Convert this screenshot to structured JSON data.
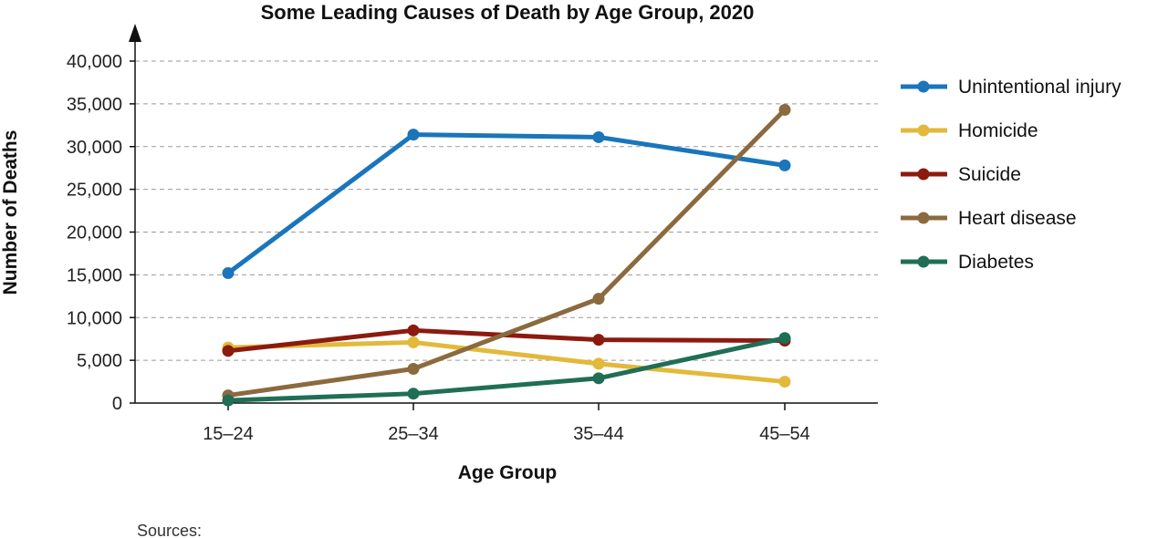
{
  "chart_data": {
    "type": "line",
    "title": "Some Leading Causes of Death by Age Group, 2020",
    "xlabel": "Age Group",
    "ylabel": "Number of Deaths",
    "categories": [
      "15–24",
      "25–34",
      "35–44",
      "45–54"
    ],
    "ylim": [
      0,
      40000
    ],
    "yticks": [
      0,
      5000,
      10000,
      15000,
      20000,
      25000,
      30000,
      35000,
      40000
    ],
    "ytick_labels": [
      "0",
      "5,000",
      "10,000",
      "15,000",
      "20,000",
      "25,000",
      "30,000",
      "35,000",
      "40,000"
    ],
    "grid": true,
    "legend_position": "right",
    "series": [
      {
        "name": "Unintentional injury",
        "color": "#1a75bb",
        "values": [
          15200,
          31400,
          31100,
          27800
        ]
      },
      {
        "name": "Homicide",
        "color": "#e2b93b",
        "values": [
          6500,
          7100,
          4600,
          2500
        ]
      },
      {
        "name": "Suicide",
        "color": "#8c1a0f",
        "values": [
          6100,
          8500,
          7400,
          7300
        ]
      },
      {
        "name": "Heart disease",
        "color": "#8b6a3e",
        "values": [
          900,
          4000,
          12200,
          34300
        ]
      },
      {
        "name": "Diabetes",
        "color": "#1f6e56",
        "values": [
          300,
          1100,
          2900,
          7600
        ]
      }
    ]
  },
  "footer": {
    "sources_label": "Sources:"
  }
}
